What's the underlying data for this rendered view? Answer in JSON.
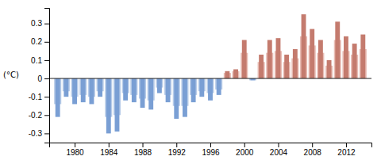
{
  "chart_data": {
    "type": "bar",
    "ylabel": "(°C)",
    "x": [
      1978,
      1979,
      1980,
      1981,
      1982,
      1983,
      1984,
      1985,
      1986,
      1987,
      1988,
      1989,
      1990,
      1991,
      1992,
      1993,
      1994,
      1995,
      1996,
      1997,
      1998,
      1999,
      2000,
      2001,
      2002,
      2003,
      2004,
      2005,
      2006,
      2007,
      2008,
      2009,
      2010,
      2011,
      2012,
      2013,
      2014
    ],
    "series": [
      {
        "values": [
          -0.14,
          -0.07,
          -0.1,
          -0.09,
          -0.1,
          -0.07,
          -0.21,
          -0.2,
          -0.08,
          -0.09,
          -0.11,
          -0.12,
          -0.05,
          -0.09,
          -0.15,
          -0.15,
          -0.09,
          -0.07,
          -0.08,
          -0.06,
          0.03,
          0.04,
          0.14,
          -0.01,
          0.09,
          0.14,
          0.15,
          0.09,
          0.11,
          0.23,
          0.18,
          0.14,
          0.07,
          0.21,
          0.15,
          0.13,
          0.16
        ],
        "colors": [
          "#b8cce8",
          "#b8cce8",
          "#b8cce8",
          "#b8cce8",
          "#b8cce8",
          "#b8cce8",
          "#b8cce8",
          "#b8cce8",
          "#b8cce8",
          "#b8cce8",
          "#b8cce8",
          "#b8cce8",
          "#b8cce8",
          "#b8cce8",
          "#b8cce8",
          "#b8cce8",
          "#b8cce8",
          "#b8cce8",
          "#b8cce8",
          "#b8cce8",
          "#e8bdb5",
          "#e8bdb5",
          "#e8bdb5",
          "#b8cce8",
          "#e8bdb5",
          "#e8bdb5",
          "#e8bdb5",
          "#e8bdb5",
          "#e8bdb5",
          "#e8bdb5",
          "#e8bdb5",
          "#e8bdb5",
          "#e8bdb5",
          "#e8bdb5",
          "#e8bdb5",
          "#e8bdb5",
          "#e8bdb5"
        ]
      },
      {
        "values": [
          -0.21,
          -0.1,
          -0.14,
          -0.13,
          -0.14,
          -0.1,
          -0.3,
          -0.29,
          -0.12,
          -0.13,
          -0.16,
          -0.17,
          -0.08,
          -0.13,
          -0.22,
          -0.21,
          -0.13,
          -0.1,
          -0.12,
          -0.09,
          0.04,
          0.05,
          0.21,
          -0.01,
          0.13,
          0.21,
          0.22,
          0.13,
          0.16,
          0.35,
          0.27,
          0.21,
          0.1,
          0.31,
          0.23,
          0.19,
          0.24
        ],
        "colors": [
          "#7a9fd4",
          "#7a9fd4",
          "#7a9fd4",
          "#7a9fd4",
          "#7a9fd4",
          "#7a9fd4",
          "#7a9fd4",
          "#7a9fd4",
          "#7a9fd4",
          "#7a9fd4",
          "#7a9fd4",
          "#7a9fd4",
          "#7a9fd4",
          "#7a9fd4",
          "#7a9fd4",
          "#7a9fd4",
          "#7a9fd4",
          "#7a9fd4",
          "#7a9fd4",
          "#7a9fd4",
          "#c47b6e",
          "#c47b6e",
          "#c47b6e",
          "#7a9fd4",
          "#c47b6e",
          "#c47b6e",
          "#c47b6e",
          "#c47b6e",
          "#c47b6e",
          "#c47b6e",
          "#c47b6e",
          "#c47b6e",
          "#c47b6e",
          "#c47b6e",
          "#c47b6e",
          "#c47b6e",
          "#c47b6e"
        ]
      }
    ],
    "xlim": [
      1977,
      2015
    ],
    "xticks": [
      1980,
      1984,
      1988,
      1992,
      1996,
      2000,
      2004,
      2008,
      2012
    ],
    "ylim": [
      -0.35,
      0.385
    ],
    "yticks": [
      -0.3,
      -0.2,
      -0.1,
      0,
      0.1,
      0.2,
      0.3
    ]
  }
}
